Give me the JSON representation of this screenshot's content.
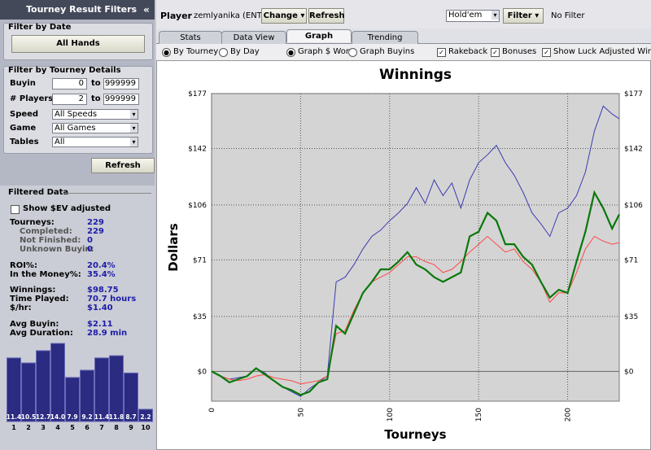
{
  "sidebar": {
    "title": "Tourney Result Filters",
    "collapse": "«",
    "date_filter": {
      "title": "Filter by Date",
      "button": "All Hands"
    },
    "details_filter": {
      "title": "Filter by Tourney Details",
      "ranges": [
        {
          "label": "Buyin",
          "from": "0",
          "sep": "to",
          "to": "999999"
        },
        {
          "label": "# Players",
          "from": "2",
          "sep": "to",
          "to": "999999"
        }
      ],
      "selects": [
        {
          "label": "Speed",
          "value": "All Speeds"
        },
        {
          "label": "Game",
          "value": "All Games"
        },
        {
          "label": "Tables",
          "value": "All"
        }
      ]
    },
    "refresh": "Refresh",
    "filtered": {
      "title": "Filtered Data",
      "ev_checkbox": "Show $EV adjusted",
      "stats": [
        {
          "label": "Tourneys:",
          "value": "229"
        },
        {
          "label": "Completed:",
          "value": "229"
        },
        {
          "label": "Not Finished:",
          "value": "0"
        },
        {
          "label": "Unknown Buyin:",
          "value": "0"
        },
        {
          "label": "ROI%:",
          "value": "20.4%"
        },
        {
          "label": "In the Money%:",
          "value": "35.4%"
        },
        {
          "label": "Winnings:",
          "value": "$98.75"
        },
        {
          "label": "Time Played:",
          "value": "70.7 hours"
        },
        {
          "label": "$/hr:",
          "value": "$1.40"
        },
        {
          "label": "Avg Buyin:",
          "value": "$2.11"
        },
        {
          "label": "Avg Duration:",
          "value": "28.9 min"
        }
      ]
    }
  },
  "toolbar": {
    "player_label": "Player",
    "player": "zemlyanika (ENT)",
    "change": "Change",
    "refresh": "Refresh",
    "game": "Hold'em",
    "filter": "Filter",
    "filter_state": "No Filter"
  },
  "tabs": [
    "Stats",
    "Data View",
    "Graph",
    "Trending"
  ],
  "options": {
    "by_tourney": "By Tourney",
    "by_day": "By Day",
    "graph_won": "Graph $ Won",
    "graph_buyins": "Graph Buyins",
    "rakeback": "Rakeback",
    "bonuses": "Bonuses",
    "luck": "Show Luck Adjusted Winning"
  },
  "chart_data": [
    {
      "type": "line",
      "title": "Winnings",
      "x_label": "Tourneys",
      "y_label": "Dollars",
      "x": [
        0,
        5,
        10,
        15,
        20,
        25,
        30,
        35,
        40,
        45,
        50,
        55,
        60,
        65,
        70,
        75,
        80,
        85,
        90,
        95,
        100,
        105,
        110,
        115,
        120,
        125,
        130,
        135,
        140,
        145,
        150,
        155,
        160,
        165,
        170,
        175,
        180,
        185,
        190,
        195,
        200,
        205,
        210,
        215,
        220,
        225,
        229
      ],
      "series": [
        {
          "color": "#3b3bb3",
          "width": 1,
          "values": [
            0,
            -3,
            -5,
            -4,
            -3,
            2,
            -1,
            -6,
            -10,
            -13,
            -16,
            -11,
            -7,
            -3,
            57,
            60,
            68,
            78,
            86,
            90,
            96,
            101,
            107,
            117,
            107,
            122,
            112,
            120,
            104,
            122,
            133,
            138,
            144,
            133,
            125,
            114,
            101,
            94,
            86,
            101,
            104,
            112,
            127,
            153,
            169,
            164,
            161
          ]
        },
        {
          "color": "#ff4a4a",
          "width": 1,
          "values": [
            0,
            -3,
            -5,
            -6,
            -5,
            -3,
            -2,
            -4,
            -5,
            -6,
            -8,
            -7,
            -6,
            -3,
            24,
            26,
            39,
            50,
            57,
            60,
            63,
            68,
            73,
            73,
            70,
            68,
            63,
            65,
            70,
            76,
            81,
            86,
            81,
            76,
            78,
            70,
            65,
            57,
            44,
            50,
            50,
            63,
            78,
            86,
            83,
            81,
            82
          ]
        },
        {
          "color": "#0a780a",
          "width": 2.2,
          "values": [
            0,
            -3,
            -7,
            -5,
            -3,
            2,
            -2,
            -6,
            -10,
            -12,
            -15,
            -13,
            -7,
            -5,
            29,
            24,
            37,
            50,
            57,
            65,
            65,
            70,
            76,
            68,
            65,
            60,
            57,
            60,
            63,
            86,
            89,
            101,
            96,
            81,
            81,
            73,
            68,
            57,
            47,
            52,
            50,
            70,
            89,
            114,
            104,
            91,
            100
          ]
        }
      ],
      "xlim": [
        0,
        229
      ],
      "xticks": [
        0,
        50,
        100,
        150,
        200
      ],
      "ylim": [
        -19,
        177
      ],
      "yticks": [
        {
          "value": 0,
          "label": "$0"
        },
        {
          "value": 35,
          "label": "$35"
        },
        {
          "value": 71,
          "label": "$71"
        },
        {
          "value": 106,
          "label": "$106"
        },
        {
          "value": 142,
          "label": "$142"
        },
        {
          "value": 177,
          "label": "$177"
        }
      ],
      "grid": true
    },
    {
      "type": "bar",
      "categories": [
        "1",
        "2",
        "3",
        "4",
        "5",
        "6",
        "7",
        "8",
        "9",
        "10"
      ],
      "values": [
        11.4,
        10.5,
        12.7,
        14.0,
        7.9,
        9.2,
        11.4,
        11.8,
        8.7,
        2.2
      ],
      "value_labels": [
        "11.4",
        "10.5",
        "12.7",
        "14.0",
        "7.9",
        "9.2",
        "11.4",
        "11.8",
        "8.7",
        "2.2"
      ],
      "ylim": [
        0,
        14
      ],
      "color": "#2b2b82"
    }
  ]
}
